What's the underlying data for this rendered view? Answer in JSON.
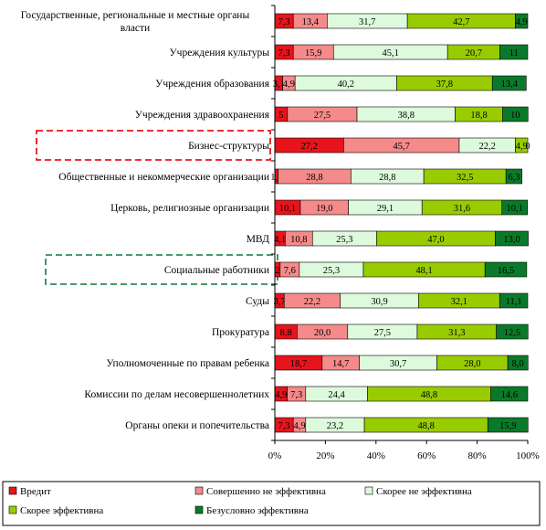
{
  "chart_data": {
    "type": "bar",
    "orientation": "horizontal",
    "stacked": true,
    "percent": true,
    "categories": [
      "Государственные, региональные и местные органы власти",
      "Учреждения культуры",
      "Учреждения образования",
      "Учреждения здравоохранения",
      "Бизнес-структуры",
      "Общественные и некоммерческие организации",
      "Церковь, религиозные организации",
      "МВД",
      "Социальные работники",
      "Суды",
      "Прокуратура",
      "Уполномоченные по правам ребенка",
      "Комиссии по делам несовершеннолетних",
      "Органы опеки и попечительства"
    ],
    "series": [
      {
        "name": "Вредит",
        "color": "#e8141c",
        "values": [
          7.3,
          7.3,
          3.1,
          5.0,
          27.2,
          1.3,
          10.1,
          4.1,
          2.1,
          3.7,
          8.8,
          18.7,
          4.9,
          7.3
        ],
        "labels": [
          "7,3",
          "7,3",
          "3,1",
          "5",
          "27,2",
          "1,3",
          "10,1",
          "4,1",
          "2",
          "3,7",
          "8,8",
          "18,7",
          "4,9",
          "7,3"
        ]
      },
      {
        "name": "Совершенно не эффективна",
        "color": "#f58a8a",
        "values": [
          13.4,
          15.9,
          4.9,
          27.5,
          45.7,
          28.8,
          19.0,
          10.8,
          7.6,
          22.2,
          20.0,
          14.7,
          7.3,
          4.9
        ],
        "labels": [
          "13,4",
          "15,9",
          "4,9",
          "27,5",
          "45,7",
          "28,8",
          "19,0",
          "10,8",
          "7,6",
          "22,2",
          "20,0",
          "14,7",
          "7,3",
          "4,9"
        ]
      },
      {
        "name": "Скорее не эффективна",
        "color": "#ddfadd",
        "values": [
          31.7,
          45.1,
          40.2,
          38.8,
          22.2,
          28.8,
          29.1,
          25.3,
          25.3,
          30.9,
          27.5,
          30.7,
          24.4,
          23.2
        ],
        "labels": [
          "31,7",
          "45,1",
          "40,2",
          "38,8",
          "22,2",
          "28,8",
          "29,1",
          "25,3",
          "25,3",
          "30,9",
          "27,5",
          "30,7",
          "24,4",
          "23,2"
        ]
      },
      {
        "name": "Скорее эффективна",
        "color": "#99cc00",
        "values": [
          42.7,
          20.7,
          37.8,
          18.8,
          4.9,
          32.5,
          31.6,
          47.0,
          48.1,
          32.1,
          31.3,
          28.0,
          48.8,
          48.8
        ],
        "labels": [
          "42,7",
          "20,7",
          "37,8",
          "18,8",
          "4,9",
          "32,5",
          "31,6",
          "47,0",
          "48,1",
          "32,1",
          "31,3",
          "28,0",
          "48,8",
          "48,8"
        ]
      },
      {
        "name": "Безусловно эффективна",
        "color": "#0a7a2a",
        "values": [
          4.9,
          11.0,
          13.4,
          10.0,
          0.0,
          6.3,
          10.1,
          13.0,
          16.5,
          11.1,
          12.5,
          8.0,
          14.6,
          15.9
        ],
        "labels": [
          "4,9",
          "11",
          "13,4",
          "10",
          "0",
          "6,3",
          "10,1",
          "13,0",
          "16,5",
          "11,1",
          "12,5",
          "8,0",
          "14,6",
          "15,9"
        ]
      }
    ],
    "xlim": [
      0,
      100
    ],
    "xticks": [
      "0%",
      "20%",
      "40%",
      "60%",
      "80%",
      "100%"
    ],
    "legend_position": "bottom",
    "highlighted": [
      {
        "category": "Бизнес-структуры",
        "color": "#e8141c",
        "style": "dashed"
      },
      {
        "category": "Социальные работники",
        "color": "#2e8b57",
        "style": "dashed"
      }
    ]
  }
}
